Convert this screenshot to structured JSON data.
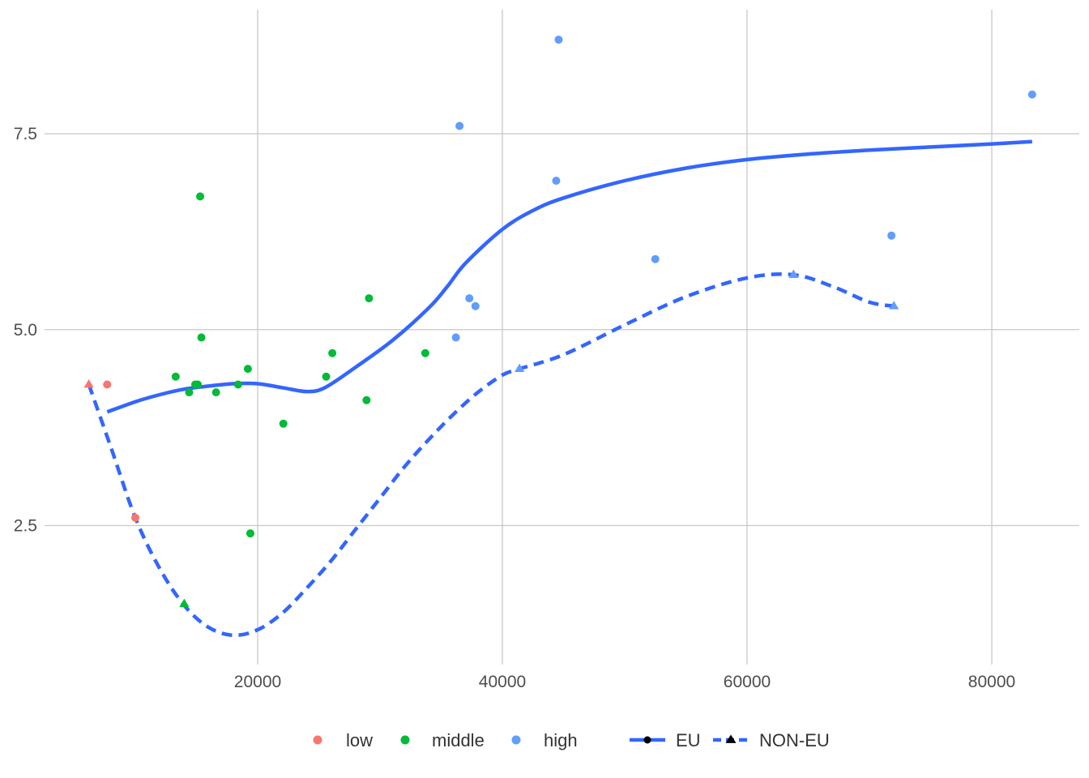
{
  "chart_data": {
    "type": "scatter",
    "title": "",
    "xlabel": "",
    "ylabel": "",
    "xlim": [
      2500,
      87000
    ],
    "ylim": [
      0.8,
      9.1
    ],
    "x_ticks": [
      20000,
      40000,
      60000,
      80000
    ],
    "y_ticks": [
      2.5,
      5.0,
      7.5
    ],
    "x_tick_labels": [
      "20000",
      "40000",
      "60000",
      "80000"
    ],
    "y_tick_labels": [
      "2.5",
      "5.0",
      "7.5"
    ],
    "grid": true,
    "legend_position": "bottom",
    "color_groups": [
      {
        "name": "low",
        "color": "#F8766D"
      },
      {
        "name": "middle",
        "color": "#00BA38"
      },
      {
        "name": "high",
        "color": "#619CFF"
      }
    ],
    "shape_groups": [
      {
        "name": "EU",
        "shape": "circle",
        "linetype": "solid"
      },
      {
        "name": "NON-EU",
        "shape": "triangle",
        "linetype": "dashed"
      }
    ],
    "points": [
      {
        "x": 6200,
        "y": 4.3,
        "group": "low",
        "type": "NON-EU"
      },
      {
        "x": 7700,
        "y": 4.3,
        "group": "low",
        "type": "EU"
      },
      {
        "x": 10000,
        "y": 2.6,
        "group": "low",
        "type": "EU"
      },
      {
        "x": 13300,
        "y": 4.4,
        "group": "middle",
        "type": "EU"
      },
      {
        "x": 14000,
        "y": 1.5,
        "group": "middle",
        "type": "NON-EU"
      },
      {
        "x": 14400,
        "y": 4.2,
        "group": "middle",
        "type": "EU"
      },
      {
        "x": 14900,
        "y": 4.3,
        "group": "middle",
        "type": "EU"
      },
      {
        "x": 15100,
        "y": 4.3,
        "group": "middle",
        "type": "EU"
      },
      {
        "x": 15300,
        "y": 6.7,
        "group": "middle",
        "type": "EU"
      },
      {
        "x": 15400,
        "y": 4.9,
        "group": "middle",
        "type": "EU"
      },
      {
        "x": 16600,
        "y": 4.2,
        "group": "middle",
        "type": "EU"
      },
      {
        "x": 18400,
        "y": 4.3,
        "group": "middle",
        "type": "EU"
      },
      {
        "x": 19200,
        "y": 4.5,
        "group": "middle",
        "type": "EU"
      },
      {
        "x": 19400,
        "y": 2.4,
        "group": "middle",
        "type": "EU"
      },
      {
        "x": 22100,
        "y": 3.8,
        "group": "middle",
        "type": "EU"
      },
      {
        "x": 25600,
        "y": 4.4,
        "group": "middle",
        "type": "EU"
      },
      {
        "x": 26100,
        "y": 4.7,
        "group": "middle",
        "type": "EU"
      },
      {
        "x": 28900,
        "y": 4.1,
        "group": "middle",
        "type": "EU"
      },
      {
        "x": 29100,
        "y": 5.4,
        "group": "middle",
        "type": "EU"
      },
      {
        "x": 33700,
        "y": 4.7,
        "group": "middle",
        "type": "EU"
      },
      {
        "x": 36200,
        "y": 4.9,
        "group": "high",
        "type": "EU"
      },
      {
        "x": 36500,
        "y": 7.6,
        "group": "high",
        "type": "EU"
      },
      {
        "x": 37300,
        "y": 5.4,
        "group": "high",
        "type": "EU"
      },
      {
        "x": 37800,
        "y": 5.3,
        "group": "high",
        "type": "EU"
      },
      {
        "x": 41400,
        "y": 4.5,
        "group": "high",
        "type": "NON-EU"
      },
      {
        "x": 44400,
        "y": 6.9,
        "group": "high",
        "type": "EU"
      },
      {
        "x": 44600,
        "y": 8.7,
        "group": "high",
        "type": "EU"
      },
      {
        "x": 52500,
        "y": 5.9,
        "group": "high",
        "type": "EU"
      },
      {
        "x": 63800,
        "y": 5.7,
        "group": "high",
        "type": "NON-EU"
      },
      {
        "x": 71800,
        "y": 6.2,
        "group": "high",
        "type": "EU"
      },
      {
        "x": 72000,
        "y": 5.3,
        "group": "high",
        "type": "NON-EU"
      },
      {
        "x": 83300,
        "y": 8.0,
        "group": "high",
        "type": "EU"
      }
    ],
    "series": [
      {
        "name": "EU",
        "linetype": "solid",
        "color": "#3366FF",
        "x": [
          7700,
          10000,
          12000,
          14000,
          16000,
          18000,
          20000,
          22000,
          24000,
          25500,
          28000,
          31000,
          34000,
          35500,
          37000,
          40000,
          42500,
          45000,
          50000,
          55000,
          60000,
          65000,
          70000,
          75000,
          80000,
          83300
        ],
        "y": [
          3.95,
          4.08,
          4.17,
          4.24,
          4.28,
          4.31,
          4.31,
          4.26,
          4.21,
          4.26,
          4.52,
          4.86,
          5.28,
          5.55,
          5.85,
          6.28,
          6.52,
          6.68,
          6.9,
          7.06,
          7.17,
          7.24,
          7.29,
          7.33,
          7.37,
          7.4
        ]
      },
      {
        "name": "NON-EU",
        "linetype": "dashed",
        "color": "#3366FF",
        "x": [
          6200,
          8000,
          10000,
          12000,
          14000,
          16000,
          18000,
          20000,
          22000,
          24000,
          26000,
          28000,
          30000,
          32000,
          34000,
          36000,
          38000,
          40000,
          41400,
          45000,
          50000,
          55000,
          60000,
          63800,
          67000,
          70000,
          72000
        ],
        "y": [
          4.3,
          3.5,
          2.6,
          1.95,
          1.48,
          1.2,
          1.1,
          1.17,
          1.38,
          1.7,
          2.05,
          2.45,
          2.85,
          3.25,
          3.6,
          3.92,
          4.2,
          4.42,
          4.5,
          4.68,
          5.06,
          5.42,
          5.66,
          5.7,
          5.55,
          5.35,
          5.3
        ]
      }
    ]
  }
}
